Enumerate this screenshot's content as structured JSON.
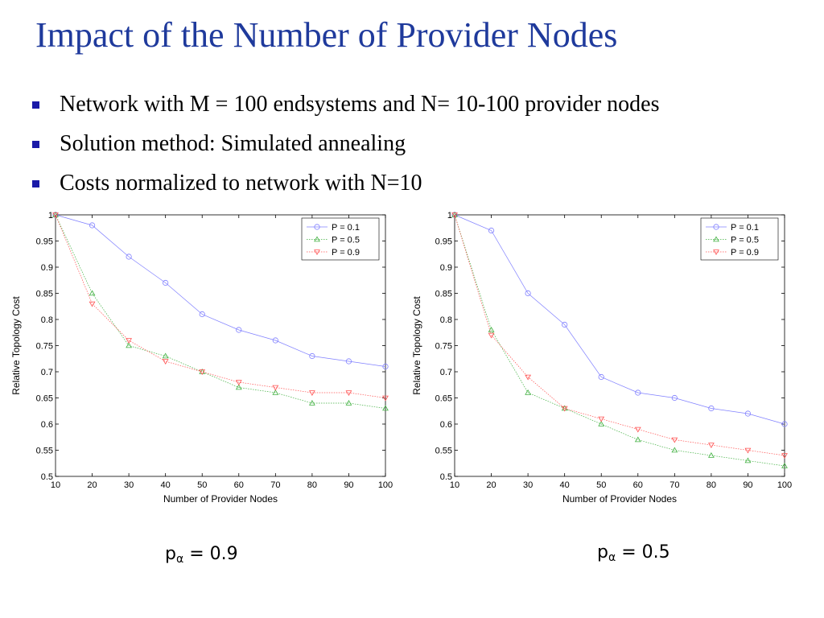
{
  "title": "Impact of the Number of Provider Nodes",
  "bullets": [
    "Network with M = 100 endsystems and N= 10-100 provider nodes",
    "Solution method: Simulated annealing",
    "Costs normalized to network with N=10"
  ],
  "captions": [
    {
      "prefix": "p",
      "sub": "α",
      "suffix": " = 0.9"
    },
    {
      "prefix": "p",
      "sub": "α",
      "suffix": " = 0.5"
    }
  ],
  "colors": {
    "title": "#1f3a9c",
    "bullet": "#1a1aa8",
    "p01": "#8080ff",
    "p05": "#40b040",
    "p09": "#ff5050"
  },
  "chart_data": [
    {
      "type": "line",
      "xlabel": "Number of Provider Nodes",
      "ylabel": "Relative Topology Cost",
      "xlim": [
        10,
        100
      ],
      "ylim": [
        0.5,
        1
      ],
      "x": [
        10,
        20,
        30,
        40,
        50,
        60,
        70,
        80,
        90,
        100
      ],
      "xticks": [
        10,
        20,
        30,
        40,
        50,
        60,
        70,
        80,
        90,
        100
      ],
      "yticks": [
        "0.5",
        "0.55",
        "0.6",
        "0.65",
        "0.7",
        "0.75",
        "0.8",
        "0.85",
        "0.9",
        "0.95",
        "1"
      ],
      "grid": false,
      "legend": "top-right",
      "series": [
        {
          "name": "P = 0.1",
          "color": "#8080ff",
          "marker": "circle",
          "values": [
            1.0,
            0.98,
            0.92,
            0.87,
            0.81,
            0.78,
            0.76,
            0.73,
            0.72,
            0.71
          ]
        },
        {
          "name": "P = 0.5",
          "color": "#40b040",
          "marker": "triangle-up",
          "values": [
            1.0,
            0.85,
            0.75,
            0.73,
            0.7,
            0.67,
            0.66,
            0.64,
            0.64,
            0.63
          ]
        },
        {
          "name": "P = 0.9",
          "color": "#ff5050",
          "marker": "triangle-down",
          "values": [
            1.0,
            0.83,
            0.76,
            0.72,
            0.7,
            0.68,
            0.67,
            0.66,
            0.66,
            0.65
          ]
        }
      ]
    },
    {
      "type": "line",
      "xlabel": "Number of Provider Nodes",
      "ylabel": "Relative Topology Cost",
      "xlim": [
        10,
        100
      ],
      "ylim": [
        0.5,
        1
      ],
      "x": [
        10,
        20,
        30,
        40,
        50,
        60,
        70,
        80,
        90,
        100
      ],
      "xticks": [
        10,
        20,
        30,
        40,
        50,
        60,
        70,
        80,
        90,
        100
      ],
      "yticks": [
        "0.5",
        "0.55",
        "0.6",
        "0.65",
        "0.7",
        "0.75",
        "0.8",
        "0.85",
        "0.9",
        "0.95",
        "1"
      ],
      "grid": false,
      "legend": "top-right",
      "series": [
        {
          "name": "P = 0.1",
          "color": "#8080ff",
          "marker": "circle",
          "values": [
            1.0,
            0.97,
            0.85,
            0.79,
            0.69,
            0.66,
            0.65,
            0.63,
            0.62,
            0.6
          ]
        },
        {
          "name": "P = 0.5",
          "color": "#40b040",
          "marker": "triangle-up",
          "values": [
            1.0,
            0.78,
            0.66,
            0.63,
            0.6,
            0.57,
            0.55,
            0.54,
            0.53,
            0.52
          ]
        },
        {
          "name": "P = 0.9",
          "color": "#ff5050",
          "marker": "triangle-down",
          "values": [
            1.0,
            0.77,
            0.69,
            0.63,
            0.61,
            0.59,
            0.57,
            0.56,
            0.55,
            0.54
          ]
        }
      ]
    }
  ]
}
